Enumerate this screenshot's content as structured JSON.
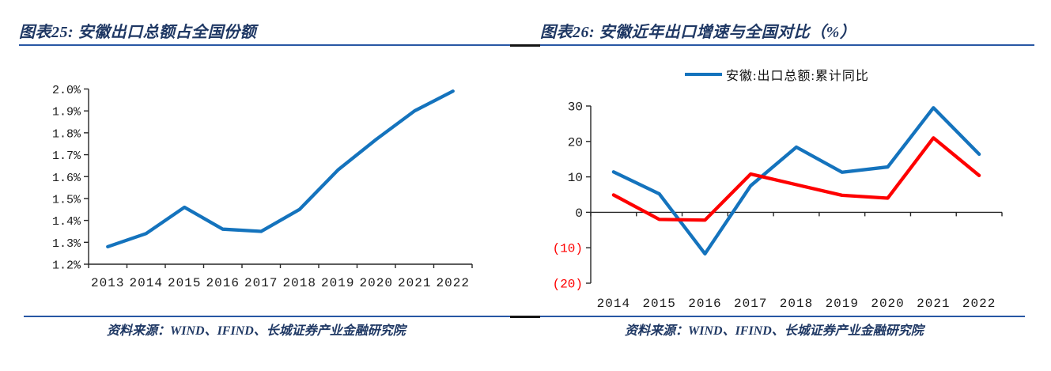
{
  "page": {
    "background": "#ffffff"
  },
  "colors": {
    "series_blue": "#1473bd",
    "series_red": "#fe0000",
    "title_navy": "#1f3864",
    "rule_blue": "#2857a4",
    "axis_black": "#262626",
    "negative_tick_red": "#fe0000"
  },
  "left_figure": {
    "title": "图表25:  安徽出口总额占全国份额",
    "source": "资料来源：WIND、IFIND、长城证券产业金融研究院"
  },
  "right_figure": {
    "title": "图表26:  安徽近年出口增速与全国对比（%）",
    "legend_label": "安徽:出口总额:累计同比",
    "source": "资料来源：WIND、IFIND、长城证券产业金融研究院"
  },
  "chart_data": [
    {
      "type": "line",
      "title": "图表25: 安徽出口总额占全国份额",
      "xlabel": "",
      "ylabel": "",
      "grid": false,
      "legend_position": "none",
      "categories": [
        "2013",
        "2014",
        "2015",
        "2016",
        "2017",
        "2018",
        "2019",
        "2020",
        "2021",
        "2022"
      ],
      "series": [
        {
          "name": "安徽出口总额占全国份额",
          "color": "#1473bd",
          "values": [
            1.28,
            1.34,
            1.46,
            1.36,
            1.35,
            1.45,
            1.63,
            1.77,
            1.9,
            1.99
          ]
        }
      ],
      "ylim": [
        1.2,
        2.0
      ],
      "x_axis_at": 1.2,
      "y_ticks": [
        {
          "label": "2.0%",
          "value": 2.0
        },
        {
          "label": "1.9%",
          "value": 1.9
        },
        {
          "label": "1.8%",
          "value": 1.8
        },
        {
          "label": "1.7%",
          "value": 1.7
        },
        {
          "label": "1.6%",
          "value": 1.6
        },
        {
          "label": "1.5%",
          "value": 1.5
        },
        {
          "label": "1.4%",
          "value": 1.4
        },
        {
          "label": "1.3%",
          "value": 1.3
        },
        {
          "label": "1.2%",
          "value": 1.2
        }
      ]
    },
    {
      "type": "line",
      "title": "图表26: 安徽近年出口增速与全国对比（%）",
      "xlabel": "",
      "ylabel": "",
      "grid": false,
      "legend_position": "top",
      "legend_entries": [
        "安徽:出口总额:累计同比"
      ],
      "categories": [
        "2014",
        "2015",
        "2016",
        "2017",
        "2018",
        "2019",
        "2020",
        "2021",
        "2022"
      ],
      "series": [
        {
          "name": "安徽:出口总额:累计同比",
          "color": "#1473bd",
          "values": [
            11.4,
            5.2,
            -11.7,
            7.5,
            18.4,
            11.3,
            12.8,
            29.5,
            16.4
          ]
        },
        {
          "name": "",
          "color": "#fe0000",
          "values": [
            4.9,
            -2.0,
            -2.2,
            10.8,
            7.8,
            4.8,
            4.0,
            21.0,
            10.4
          ]
        }
      ],
      "ylim": [
        -20,
        30
      ],
      "x_axis_at": 0,
      "y_ticks": [
        {
          "label": "30",
          "value": 30
        },
        {
          "label": "20",
          "value": 20
        },
        {
          "label": "10",
          "value": 10
        },
        {
          "label": "0",
          "value": 0
        },
        {
          "label": "(10)",
          "value": -10,
          "color": "#fe0000"
        },
        {
          "label": "(20)",
          "value": -20,
          "color": "#fe0000"
        }
      ]
    }
  ]
}
